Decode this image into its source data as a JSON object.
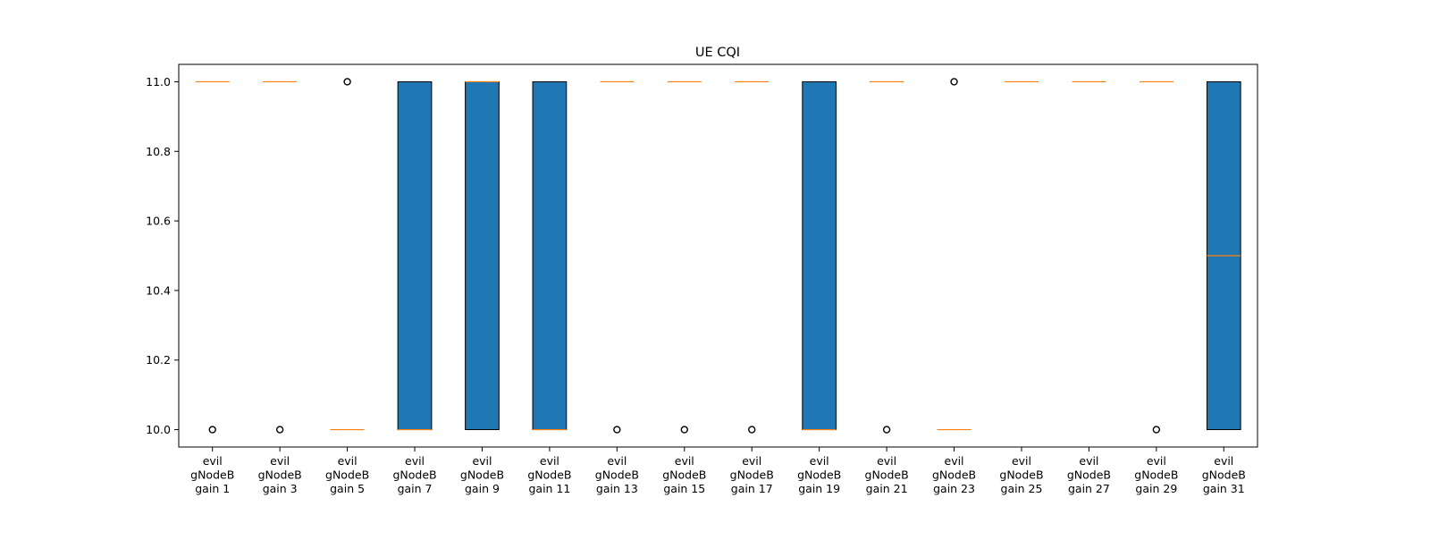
{
  "chart_data": {
    "type": "boxplot",
    "title": "UE CQI",
    "xlabel": "",
    "ylabel": "",
    "ylim": [
      9.95,
      11.05
    ],
    "yticks": [
      "10.0",
      "10.2",
      "10.4",
      "10.6",
      "10.8",
      "11.0"
    ],
    "grid": false,
    "colors": {
      "box_fill": "#1f77b4",
      "box_edge": "#000000",
      "median": "#ff7f0e",
      "flier": "#000000"
    },
    "categories": [
      [
        "evil",
        "gNodeB",
        "gain 1"
      ],
      [
        "evil",
        "gNodeB",
        "gain 3"
      ],
      [
        "evil",
        "gNodeB",
        "gain 5"
      ],
      [
        "evil",
        "gNodeB",
        "gain 7"
      ],
      [
        "evil",
        "gNodeB",
        "gain 9"
      ],
      [
        "evil",
        "gNodeB",
        "gain 11"
      ],
      [
        "evil",
        "gNodeB",
        "gain 13"
      ],
      [
        "evil",
        "gNodeB",
        "gain 15"
      ],
      [
        "evil",
        "gNodeB",
        "gain 17"
      ],
      [
        "evil",
        "gNodeB",
        "gain 19"
      ],
      [
        "evil",
        "gNodeB",
        "gain 21"
      ],
      [
        "evil",
        "gNodeB",
        "gain 23"
      ],
      [
        "evil",
        "gNodeB",
        "gain 25"
      ],
      [
        "evil",
        "gNodeB",
        "gain 27"
      ],
      [
        "evil",
        "gNodeB",
        "gain 29"
      ],
      [
        "evil",
        "gNodeB",
        "gain 31"
      ]
    ],
    "boxes": [
      {
        "q1": 11.0,
        "median": 11.0,
        "q3": 11.0,
        "whislo": 11.0,
        "whishi": 11.0,
        "fliers": [
          10.0
        ]
      },
      {
        "q1": 11.0,
        "median": 11.0,
        "q3": 11.0,
        "whislo": 11.0,
        "whishi": 11.0,
        "fliers": [
          10.0
        ]
      },
      {
        "q1": 10.0,
        "median": 10.0,
        "q3": 10.0,
        "whislo": 10.0,
        "whishi": 10.0,
        "fliers": [
          11.0
        ]
      },
      {
        "q1": 10.0,
        "median": 10.0,
        "q3": 11.0,
        "whislo": 10.0,
        "whishi": 11.0,
        "fliers": []
      },
      {
        "q1": 10.0,
        "median": 11.0,
        "q3": 11.0,
        "whislo": 10.0,
        "whishi": 11.0,
        "fliers": []
      },
      {
        "q1": 10.0,
        "median": 10.0,
        "q3": 11.0,
        "whislo": 10.0,
        "whishi": 11.0,
        "fliers": []
      },
      {
        "q1": 11.0,
        "median": 11.0,
        "q3": 11.0,
        "whislo": 11.0,
        "whishi": 11.0,
        "fliers": [
          10.0
        ]
      },
      {
        "q1": 11.0,
        "median": 11.0,
        "q3": 11.0,
        "whislo": 11.0,
        "whishi": 11.0,
        "fliers": [
          10.0
        ]
      },
      {
        "q1": 11.0,
        "median": 11.0,
        "q3": 11.0,
        "whislo": 11.0,
        "whishi": 11.0,
        "fliers": [
          10.0
        ]
      },
      {
        "q1": 10.0,
        "median": 10.0,
        "q3": 11.0,
        "whislo": 10.0,
        "whishi": 11.0,
        "fliers": []
      },
      {
        "q1": 11.0,
        "median": 11.0,
        "q3": 11.0,
        "whislo": 11.0,
        "whishi": 11.0,
        "fliers": [
          10.0
        ]
      },
      {
        "q1": 10.0,
        "median": 10.0,
        "q3": 10.0,
        "whislo": 10.0,
        "whishi": 10.0,
        "fliers": [
          11.0
        ]
      },
      {
        "q1": 11.0,
        "median": 11.0,
        "q3": 11.0,
        "whislo": 11.0,
        "whishi": 11.0,
        "fliers": []
      },
      {
        "q1": 11.0,
        "median": 11.0,
        "q3": 11.0,
        "whislo": 11.0,
        "whishi": 11.0,
        "fliers": []
      },
      {
        "q1": 11.0,
        "median": 11.0,
        "q3": 11.0,
        "whislo": 11.0,
        "whishi": 11.0,
        "fliers": [
          10.0
        ]
      },
      {
        "q1": 10.0,
        "median": 10.5,
        "q3": 11.0,
        "whislo": 10.0,
        "whishi": 11.0,
        "fliers": []
      }
    ]
  }
}
